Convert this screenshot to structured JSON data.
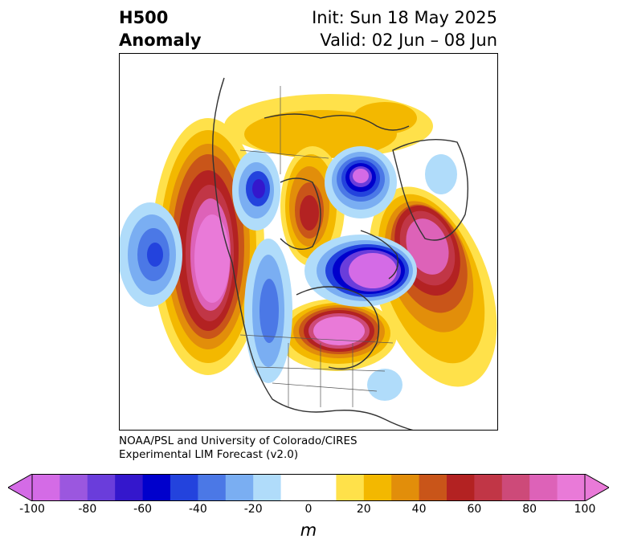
{
  "title": {
    "left_line1": "H500",
    "left_line2": "Anomaly",
    "right_line1": "Init: Sun 18 May 2025",
    "right_line2": "Valid: 02 Jun – 08 Jun"
  },
  "credit": {
    "line1": "NOAA/PSL and University of Colorado/CIRES",
    "line2": "Experimental LIM Forecast (v2.0)"
  },
  "colorbar": {
    "units": "m",
    "colors": [
      "#d46be6",
      "#9b57df",
      "#6a3ddb",
      "#3417cc",
      "#0000cc",
      "#2343dd",
      "#4b78e6",
      "#7aaef2",
      "#b0dcfa",
      "#ffffff",
      "#ffffff",
      "#ffe14a",
      "#f3b800",
      "#e28e0a",
      "#c95519",
      "#b32222",
      "#c13646",
      "#cd4a79",
      "#dd62b8",
      "#e97ad8"
    ],
    "tick_labels": [
      "-100",
      "-80",
      "-60",
      "-40",
      "-20",
      "0",
      "20",
      "40",
      "60",
      "80",
      "100"
    ]
  }
}
